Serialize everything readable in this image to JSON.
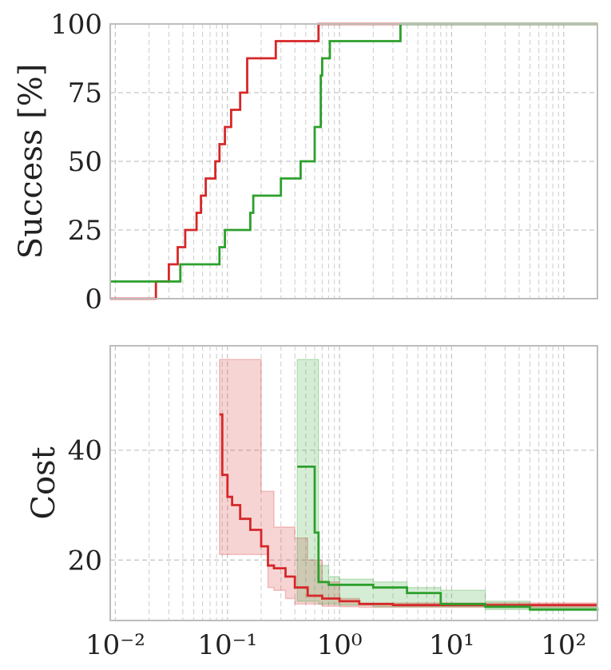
{
  "chart_data": [
    {
      "type": "line",
      "ylabel": "Success [%]",
      "x_scale": "log",
      "xlim": [
        0.009,
        200
      ],
      "ylim": [
        0,
        100
      ],
      "yticks": [
        "0",
        "25",
        "50",
        "75",
        "100"
      ],
      "grid": true,
      "series": [
        {
          "color": "#d62728",
          "step": true,
          "x": [
            0.009,
            0.021,
            0.023,
            0.03,
            0.036,
            0.042,
            0.053,
            0.058,
            0.064,
            0.078,
            0.085,
            0.095,
            0.108,
            0.13,
            0.15,
            0.27,
            0.55,
            0.65,
            200
          ],
          "y": [
            0,
            0,
            6.25,
            12.5,
            18.75,
            25,
            31.25,
            37.5,
            43.75,
            50,
            56.25,
            62.5,
            68.75,
            75,
            87.5,
            93.75,
            93.75,
            100,
            100
          ]
        },
        {
          "color": "#2ca02c",
          "step": true,
          "x": [
            0.009,
            0.035,
            0.038,
            0.085,
            0.095,
            0.16,
            0.17,
            0.3,
            0.45,
            0.6,
            0.68,
            0.7,
            0.82,
            0.9,
            3.5,
            200
          ],
          "y": [
            6.25,
            6.25,
            12.5,
            18.75,
            25,
            31.25,
            37.5,
            43.75,
            50,
            62.5,
            81.25,
            87.5,
            93.75,
            93.75,
            100,
            100
          ]
        }
      ]
    },
    {
      "type": "line",
      "ylabel": "Cost",
      "x_scale": "log",
      "xlim": [
        0.009,
        200
      ],
      "ylim": [
        9,
        59
      ],
      "yticks": [
        "20",
        "40"
      ],
      "xticks": [
        "10⁻²",
        "10⁻¹",
        "10⁰",
        "10¹",
        "10²"
      ],
      "grid": true,
      "series": [
        {
          "color": "#d62728",
          "step": true,
          "x": [
            0.085,
            0.09,
            0.1,
            0.11,
            0.13,
            0.16,
            0.2,
            0.23,
            0.26,
            0.33,
            0.4,
            0.52,
            0.7,
            1.0,
            1.5,
            3.0,
            6.0,
            20,
            200
          ],
          "y": [
            46.5,
            35.5,
            31.5,
            30,
            27.5,
            25.5,
            22.5,
            19,
            18.5,
            17,
            15,
            13.5,
            13,
            12.5,
            12,
            11.8,
            11.8,
            11.8,
            11.8
          ],
          "band_upper": [
            56.5,
            56.5,
            56.5,
            56.5,
            56.5,
            56.5,
            32.5,
            32.5,
            26,
            26,
            24,
            20,
            16,
            13,
            12.2,
            12.2,
            12.2,
            12.2,
            12.2
          ],
          "band_lower": [
            21,
            21,
            21,
            21,
            21,
            21,
            21,
            15,
            14.5,
            13,
            12,
            12,
            11.6,
            11.5,
            11.4,
            11.4,
            11.4,
            11.4,
            11.4
          ]
        },
        {
          "color": "#2ca02c",
          "step": true,
          "x": [
            0.42,
            0.55,
            0.6,
            0.65,
            0.8,
            1.0,
            2.0,
            4.0,
            8.0,
            20,
            50,
            200
          ],
          "y": [
            37,
            37,
            25,
            16,
            15.5,
            15.5,
            15,
            14,
            12,
            11.5,
            11,
            10.8
          ],
          "band_upper": [
            56.5,
            56.5,
            56.5,
            19,
            17,
            16.5,
            16,
            15,
            14.5,
            12.5,
            11.5,
            11
          ],
          "band_lower": [
            12.5,
            12.5,
            12.5,
            12,
            12,
            11.8,
            11.5,
            11.5,
            11.5,
            11,
            10.8,
            10.6
          ]
        }
      ]
    }
  ]
}
